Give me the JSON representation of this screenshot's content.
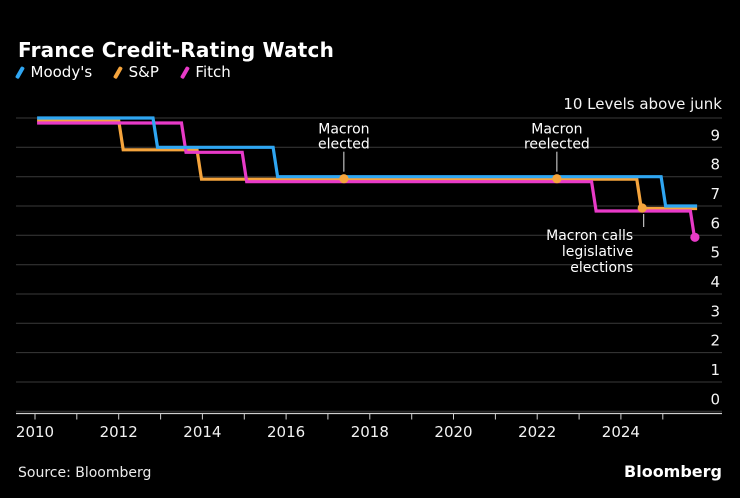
{
  "header": {
    "title": "France Credit-Rating Watch"
  },
  "legend": {
    "items": [
      {
        "label": "Moody's",
        "color": "#2fa6f2"
      },
      {
        "label": "S&P",
        "color": "#f5a43c"
      },
      {
        "label": "Fitch",
        "color": "#e83ac8"
      }
    ]
  },
  "chart_data": {
    "type": "line",
    "subtype": "step",
    "title": "France Credit-Rating Watch",
    "background": "#000000",
    "gridline_color": "#3a3a3a",
    "axis_color": "#cfcfcf",
    "grid": "horizontal-on",
    "legend_position": "top-left",
    "y_axis": {
      "side": "right",
      "top_label": "10 Levels above junk",
      "ticks": [
        "9",
        "8",
        "7",
        "6",
        "5",
        "4",
        "3",
        "2",
        "1",
        "0"
      ],
      "tick_levels": [
        9,
        8,
        7,
        6,
        5,
        4,
        3,
        2,
        1,
        0
      ],
      "range": [
        0,
        10
      ]
    },
    "x_axis": {
      "tick_labels": [
        "2010",
        "2012",
        "2014",
        "2016",
        "2018",
        "2020",
        "2022",
        "2024"
      ],
      "label_years": [
        2010,
        2012,
        2014,
        2016,
        2018,
        2020,
        2022,
        2024
      ],
      "minor_tick_years": [
        2010,
        2011,
        2012,
        2013,
        2014,
        2015,
        2016,
        2017,
        2018,
        2019,
        2020,
        2021,
        2022,
        2023,
        2024,
        2025
      ],
      "range": [
        2009.55,
        2026.4
      ]
    },
    "series": [
      {
        "name": "Moody's",
        "color": "#2fa6f2",
        "steps": [
          [
            2010.05,
            10
          ],
          [
            2012.82,
            9
          ],
          [
            2015.69,
            8
          ],
          [
            2024.96,
            7
          ]
        ],
        "end": 2025.82
      },
      {
        "name": "S&P",
        "color": "#f5a43c",
        "steps": [
          [
            2010.05,
            10
          ],
          [
            2012.0,
            9
          ],
          [
            2013.87,
            8
          ],
          [
            2024.38,
            7
          ]
        ],
        "end": 2025.82
      },
      {
        "name": "Fitch",
        "color": "#e83ac8",
        "steps": [
          [
            2010.05,
            10
          ],
          [
            2013.5,
            9
          ],
          [
            2014.95,
            8
          ],
          [
            2023.3,
            7
          ],
          [
            2025.66,
            6
          ]
        ],
        "end": 2025.66,
        "end_marker": true
      }
    ],
    "markers": [
      {
        "x": 2017.38,
        "level": 8,
        "color": "#f5a43c",
        "at_drop_bottom": false
      },
      {
        "x": 2022.47,
        "level": 8,
        "color": "#f5a43c",
        "at_drop_bottom": false
      },
      {
        "x": 2024.51,
        "level": 7,
        "color": "#f5a43c",
        "at_drop_bottom": false
      },
      {
        "x": 2025.66,
        "level": 6,
        "color": "#e83ac8",
        "at_drop_bottom": true
      }
    ],
    "annotations": [
      {
        "id": "macron-elected",
        "lines": [
          "Macron",
          "elected"
        ],
        "x": 2017.38,
        "level": 8,
        "position": "above",
        "align": "center"
      },
      {
        "id": "macron-reelected",
        "lines": [
          "Macron",
          "reelected"
        ],
        "x": 2022.47,
        "level": 8,
        "position": "above",
        "align": "center"
      },
      {
        "id": "macron-calls-legislative-elections",
        "lines": [
          "Macron calls",
          "legislative",
          "elections"
        ],
        "x": 2024.51,
        "level": 7,
        "position": "below",
        "align": "right"
      }
    ]
  },
  "footer": {
    "source": "Source: Bloomberg",
    "logo": "Bloomberg"
  }
}
